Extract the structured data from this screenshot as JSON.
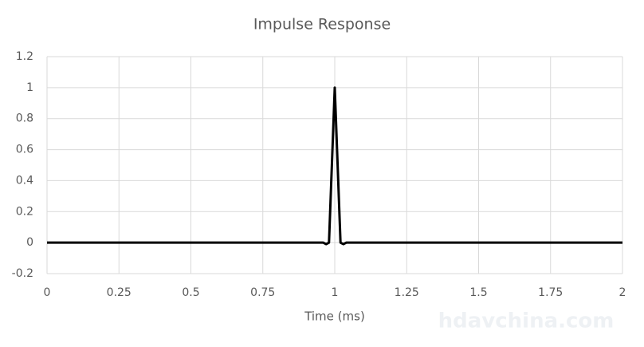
{
  "chart_data": {
    "type": "line",
    "title": "Impulse Response",
    "x_label": "Time (ms)",
    "x": [
      0,
      0.96,
      0.97,
      0.98,
      0.99,
      1.0,
      1.01,
      1.02,
      1.03,
      1.04,
      2
    ],
    "values": [
      0,
      0,
      -0.01,
      0,
      0.5,
      1,
      0.5,
      0,
      -0.01,
      0,
      0
    ],
    "color": "#000000",
    "xlim": [
      0,
      2
    ],
    "xticks": [
      0,
      0.25,
      0.5,
      0.75,
      1,
      1.25,
      1.5,
      1.75,
      2
    ],
    "ylim": [
      -0.2,
      1.2
    ],
    "yticks": [
      -0.2,
      0,
      0.2,
      0.4,
      0.6,
      0.8,
      1,
      1.2
    ],
    "grid": true,
    "watermark": "hdavchina.com"
  }
}
